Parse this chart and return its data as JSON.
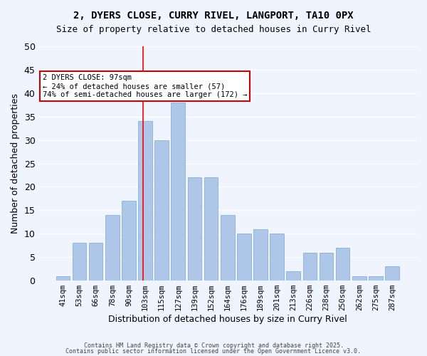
{
  "title1": "2, DYERS CLOSE, CURRY RIVEL, LANGPORT, TA10 0PX",
  "title2": "Size of property relative to detached houses in Curry Rivel",
  "xlabel": "Distribution of detached houses by size in Curry Rivel",
  "ylabel": "Number of detached properties",
  "bar_labels": [
    "41sqm",
    "53sqm",
    "66sqm",
    "78sqm",
    "90sqm",
    "103sqm",
    "115sqm",
    "127sqm",
    "139sqm",
    "152sqm",
    "164sqm",
    "176sqm",
    "189sqm",
    "201sqm",
    "213sqm",
    "226sqm",
    "238sqm",
    "250sqm",
    "262sqm",
    "275sqm",
    "287sqm"
  ],
  "bar_values": [
    1,
    8,
    8,
    14,
    17,
    34,
    30,
    38,
    22,
    22,
    14,
    10,
    11,
    10,
    2,
    6,
    6,
    7,
    1,
    1,
    3
  ],
  "bar_color": "#aec6e8",
  "bar_edge_color": "#aec6e8",
  "background_color": "#f0f4ff",
  "grid_color": "#ffffff",
  "red_line_x": 4.85,
  "annotation_title": "2 DYERS CLOSE: 97sqm",
  "annotation_line1": "← 24% of detached houses are smaller (57)",
  "annotation_line2": "74% of semi-detached houses are larger (172) →",
  "annotation_box_color": "#ffffff",
  "annotation_box_edge": "#cc0000",
  "ylim": [
    0,
    50
  ],
  "yticks": [
    0,
    5,
    10,
    15,
    20,
    25,
    30,
    35,
    40,
    45,
    50
  ],
  "footer1": "Contains HM Land Registry data © Crown copyright and database right 2025.",
  "footer2": "Contains public sector information licensed under the Open Government Licence v3.0."
}
